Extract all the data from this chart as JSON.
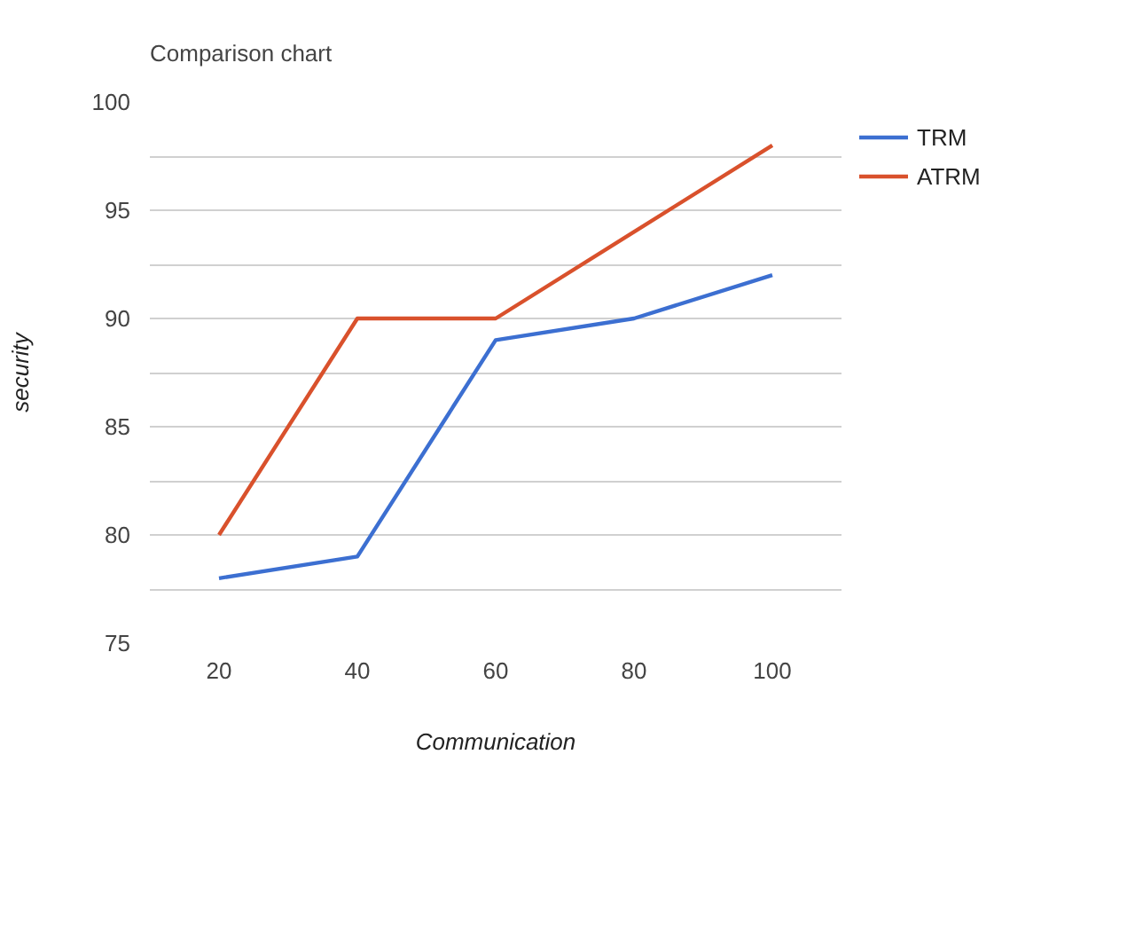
{
  "chart_data": {
    "type": "line",
    "title": "Comparison chart",
    "xlabel": "Communication",
    "ylabel": "security",
    "x": [
      20,
      40,
      60,
      80,
      100
    ],
    "series": [
      {
        "name": "TRM",
        "color": "#3c6fd1",
        "values": [
          78,
          79,
          89,
          90,
          92
        ]
      },
      {
        "name": "ATRM",
        "color": "#d9512c",
        "values": [
          80,
          90,
          90,
          94,
          98
        ]
      }
    ],
    "xlim": [
      10,
      110
    ],
    "xticks": [
      20,
      40,
      60,
      80,
      100
    ],
    "ylim": [
      75,
      100
    ],
    "yticks": [
      75,
      {
        "value": 77.5,
        "label": null
      },
      80,
      {
        "value": 82.5,
        "label": null
      },
      85,
      {
        "value": 87.5,
        "label": null
      },
      90,
      {
        "value": 92.5,
        "label": null
      },
      95,
      {
        "value": 97.5,
        "label": null
      },
      100
    ],
    "grid": "y",
    "legend": "top right",
    "marker": "none",
    "line_style": "solid"
  }
}
